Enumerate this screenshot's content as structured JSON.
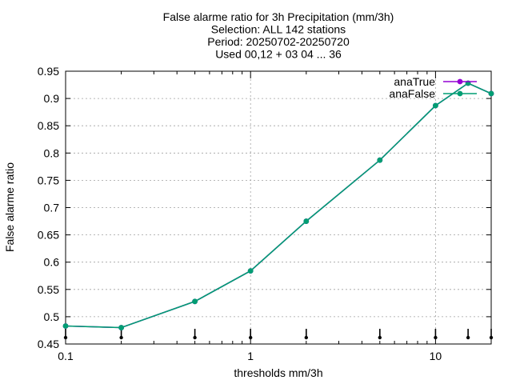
{
  "chart_data": {
    "type": "line",
    "title_lines": [
      "False alarme ratio  for 3h Precipitation (mm/3h)",
      "Selection: ALL    142 stations",
      "Period: 20250702-20250720",
      "Used 00,12 + 03 04 ... 36"
    ],
    "xlabel": "thresholds mm/3h",
    "ylabel": "False alarme ratio",
    "x_scale": "log",
    "xlim": [
      0.1,
      20
    ],
    "ylim": [
      0.45,
      0.95
    ],
    "x_ticks": [
      0.1,
      1,
      10
    ],
    "x_tick_labels": [
      "0.1",
      "1",
      "10"
    ],
    "y_ticks": [
      0.45,
      0.5,
      0.55,
      0.6,
      0.65,
      0.7,
      0.75,
      0.8,
      0.85,
      0.9,
      0.95
    ],
    "y_tick_labels": [
      "0.45",
      "0.5",
      "0.55",
      "0.6",
      "0.65",
      "0.7",
      "0.75",
      "0.8",
      "0.85",
      "0.9",
      "0.95"
    ],
    "grid": true,
    "legend_position": "top-right",
    "threshold_markers": [
      0.1,
      0.2,
      0.5,
      1,
      2,
      5,
      10,
      15,
      20
    ],
    "x": [
      0.1,
      0.2,
      0.5,
      1,
      2,
      5,
      10,
      15,
      20
    ],
    "series": [
      {
        "name": "anaTrue",
        "color": "#9400d3",
        "values": [
          0.483,
          0.48,
          0.528,
          0.584,
          0.675,
          0.787,
          0.887,
          0.928,
          0.909
        ]
      },
      {
        "name": "anaFalse",
        "color": "#009e73",
        "values": [
          0.483,
          0.48,
          0.528,
          0.584,
          0.675,
          0.787,
          0.887,
          0.928,
          0.909
        ]
      }
    ]
  }
}
